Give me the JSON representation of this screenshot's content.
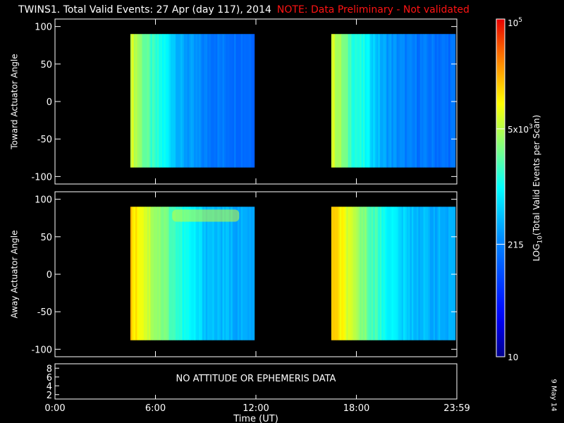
{
  "title": "TWINS1. Total Valid Events: 27 Apr (day 117), 2014",
  "warning": "NOTE: Data Preliminary - Not validated",
  "date_stamp": "9 May 14",
  "colors": {
    "warning": "#ff1414",
    "background": "#000000",
    "axes": "#ffffff"
  },
  "chart_data": [
    {
      "type": "heatmap",
      "panel": "top",
      "ylabel": "Toward Actuator Angle",
      "ylim": [
        -110,
        110
      ],
      "yticks": [
        100,
        50,
        0,
        -50,
        -100
      ],
      "x_ticks": [
        "0:00",
        "6:00",
        "12:00",
        "18:00",
        "23:59"
      ],
      "data_blocks": [
        {
          "x_start_h": 4.5,
          "x_end_h": 11.9,
          "y_range": [
            -88,
            90
          ]
        },
        {
          "x_start_h": 16.5,
          "x_end_h": 23.9,
          "y_range": [
            -88,
            90
          ]
        }
      ],
      "log10_counts_profile": [
        {
          "hours_into_block": 0.0,
          "level": 3.85
        },
        {
          "hours_into_block": 0.3,
          "level": 3.7
        },
        {
          "hours_into_block": 0.7,
          "level": 3.45
        },
        {
          "hours_into_block": 1.2,
          "level": 3.2
        },
        {
          "hours_into_block": 2.0,
          "level": 3.0
        },
        {
          "hours_into_block": 3.0,
          "level": 2.55
        },
        {
          "hours_into_block": 4.5,
          "level": 2.3
        },
        {
          "hours_into_block": 7.4,
          "level": 2.2
        }
      ]
    },
    {
      "type": "heatmap",
      "panel": "middle",
      "ylabel": "Away Actuator Angle",
      "ylim": [
        -110,
        110
      ],
      "yticks": [
        100,
        50,
        0,
        -50,
        -100
      ],
      "x_ticks": [
        "0:00",
        "6:00",
        "12:00",
        "18:00",
        "23:59"
      ],
      "data_blocks": [
        {
          "x_start_h": 4.5,
          "x_end_h": 11.9,
          "y_range": [
            -88,
            90
          ]
        },
        {
          "x_start_h": 16.5,
          "x_end_h": 23.9,
          "y_range": [
            -88,
            90
          ]
        }
      ],
      "log10_counts_profile": [
        {
          "hours_into_block": 0.0,
          "level": 4.2
        },
        {
          "hours_into_block": 0.6,
          "level": 4.0
        },
        {
          "hours_into_block": 1.2,
          "level": 3.7
        },
        {
          "hours_into_block": 2.0,
          "level": 3.45
        },
        {
          "hours_into_block": 3.0,
          "level": 3.1
        },
        {
          "hours_into_block": 4.5,
          "level": 2.7
        },
        {
          "hours_into_block": 7.4,
          "level": 2.5
        }
      ],
      "features": [
        {
          "type": "enhancement",
          "x_range_h": [
            7,
            11
          ],
          "y_range": [
            70,
            90
          ],
          "level": 3.8
        }
      ]
    },
    {
      "type": "line",
      "panel": "bottom",
      "yticks": [
        8,
        6,
        4,
        2
      ],
      "ylim": [
        1,
        9
      ],
      "message": "NO ATTITUDE OR EPHEMERIS DATA",
      "x_ticks": [
        "0:00",
        "6:00",
        "12:00",
        "18:00",
        "23:59"
      ],
      "xlabel": "Time (UT)"
    }
  ],
  "colorbar": {
    "label_pre": "LOG",
    "label_sub": "10",
    "label_post": "(Total Valid Events per Scan)",
    "scale": "log",
    "range": [
      10,
      100000
    ],
    "ticks": [
      {
        "value": 100000,
        "base": "10",
        "exp": "5"
      },
      {
        "value": 5000,
        "base": "5x10",
        "exp": "3"
      },
      {
        "value": 215,
        "base": "215",
        "exp": ""
      },
      {
        "value": 10,
        "base": "10",
        "exp": ""
      }
    ]
  }
}
